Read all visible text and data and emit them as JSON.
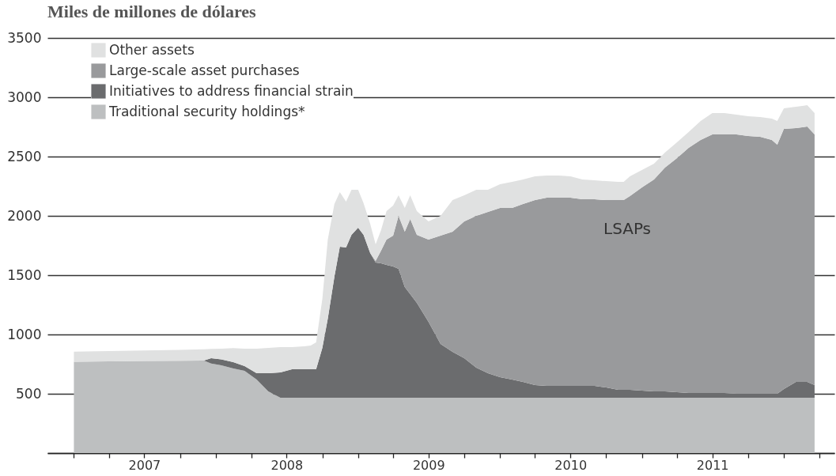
{
  "chart_data": {
    "type": "area",
    "stacked": true,
    "title": "Miles de millones de dólares",
    "x": [
      "2007-01-01",
      "2007-04-01",
      "2007-07-01",
      "2007-10-01",
      "2007-12-01",
      "2007-12-20",
      "2008-01-15",
      "2008-02-15",
      "2008-03-15",
      "2008-04-15",
      "2008-05-15",
      "2008-06-15",
      "2008-07-15",
      "2008-08-15",
      "2008-09-01",
      "2008-09-15",
      "2008-10-01",
      "2008-10-15",
      "2008-11-01",
      "2008-11-15",
      "2008-12-01",
      "2008-12-15",
      "2009-01-01",
      "2009-01-15",
      "2009-02-01",
      "2009-02-15",
      "2009-03-01",
      "2009-03-15",
      "2009-04-01",
      "2009-04-15",
      "2009-05-01",
      "2009-05-15",
      "2009-06-01",
      "2009-07-01",
      "2009-08-01",
      "2009-09-01",
      "2009-10-01",
      "2009-11-01",
      "2009-12-01",
      "2010-01-01",
      "2010-02-01",
      "2010-03-01",
      "2010-04-01",
      "2010-05-01",
      "2010-06-01",
      "2010-07-01",
      "2010-08-01",
      "2010-09-01",
      "2010-10-01",
      "2010-11-01",
      "2010-11-15",
      "2010-12-01",
      "2011-01-01",
      "2011-02-01",
      "2011-03-01",
      "2011-04-01",
      "2011-05-01",
      "2011-06-01",
      "2011-07-01",
      "2011-08-01",
      "2011-09-01",
      "2011-10-01",
      "2011-11-01",
      "2011-12-01",
      "2011-12-15",
      "2012-01-01",
      "2012-02-01",
      "2012-03-01",
      "2012-03-20"
    ],
    "series": [
      {
        "name": "Traditional security holdings*",
        "color": "#bdbfc0",
        "values": [
          770,
          773,
          777,
          778,
          780,
          755,
          740,
          713,
          693,
          620,
          520,
          467,
          467,
          467,
          467,
          467,
          467,
          467,
          467,
          467,
          467,
          467,
          467,
          467,
          467,
          467,
          467,
          467,
          467,
          467,
          467,
          467,
          467,
          467,
          467,
          467,
          467,
          467,
          467,
          467,
          467,
          467,
          467,
          467,
          467,
          467,
          467,
          467,
          467,
          467,
          467,
          467,
          467,
          467,
          467,
          467,
          467,
          467,
          467,
          467,
          467,
          467,
          467,
          467,
          467,
          467,
          467,
          467,
          467
        ]
      },
      {
        "name": "Initiatives to address financial strain",
        "color": "#6b6c6e",
        "values": [
          0,
          0,
          0,
          0,
          0,
          45,
          50,
          54,
          40,
          53,
          153,
          213,
          240,
          240,
          240,
          240,
          420,
          666,
          1020,
          1273,
          1266,
          1373,
          1433,
          1373,
          1220,
          1140,
          1133,
          1120,
          1106,
          1086,
          933,
          873,
          800,
          640,
          453,
          386,
          333,
          253,
          206,
          173,
          153,
          133,
          106,
          100,
          100,
          100,
          100,
          100,
          86,
          66,
          66,
          66,
          60,
          53,
          53,
          46,
          40,
          40,
          40,
          40,
          33,
          33,
          33,
          33,
          33,
          73,
          133,
          133,
          106
        ]
      },
      {
        "name": "Large-scale asset purchases",
        "color": "#999a9c",
        "values": [
          0,
          0,
          0,
          0,
          0,
          0,
          0,
          0,
          0,
          0,
          0,
          0,
          0,
          0,
          0,
          0,
          0,
          0,
          0,
          0,
          0,
          0,
          0,
          0,
          0,
          13,
          107,
          213,
          260,
          447,
          467,
          633,
          573,
          693,
          913,
          1014,
          1153,
          1280,
          1360,
          1427,
          1447,
          1500,
          1560,
          1586,
          1586,
          1586,
          1573,
          1573,
          1580,
          1600,
          1600,
          1634,
          1713,
          1787,
          1887,
          1974,
          2066,
          2133,
          2180,
          2180,
          2187,
          2173,
          2167,
          2140,
          2100,
          2193,
          2140,
          2153,
          2114
        ]
      },
      {
        "name": "Other assets",
        "color": "#e0e1e1",
        "values": [
          85,
          87,
          88,
          92,
          95,
          78,
          90,
          118,
          147,
          207,
          214,
          213,
          186,
          193,
          200,
          226,
          413,
          667,
          613,
          460,
          387,
          380,
          320,
          267,
          246,
          140,
          173,
          240,
          254,
          173,
          200,
          200,
          200,
          153,
          167,
          266,
          220,
          220,
          187,
          200,
          220,
          207,
          200,
          187,
          187,
          180,
          167,
          160,
          160,
          154,
          154,
          166,
          147,
          133,
          126,
          133,
          134,
          160,
          180,
          180,
          166,
          167,
          166,
          180,
          200,
          174,
          180,
          180,
          180
        ]
      }
    ],
    "xlim": [
      "2006-10-25",
      "2012-05-10"
    ],
    "xticks": [
      {
        "value": "2007-01-01",
        "label": null
      },
      {
        "value": "2007-04-01",
        "label": null
      },
      {
        "value": "2007-07-01",
        "label": "2007"
      },
      {
        "value": "2007-10-01",
        "label": null
      },
      {
        "value": "2008-01-01",
        "label": null
      },
      {
        "value": "2008-04-01",
        "label": null
      },
      {
        "value": "2008-07-01",
        "label": "2008"
      },
      {
        "value": "2008-10-01",
        "label": null
      },
      {
        "value": "2009-01-01",
        "label": null
      },
      {
        "value": "2009-04-01",
        "label": null
      },
      {
        "value": "2009-07-01",
        "label": "2009"
      },
      {
        "value": "2009-10-01",
        "label": null
      },
      {
        "value": "2010-01-01",
        "label": null
      },
      {
        "value": "2010-04-01",
        "label": null
      },
      {
        "value": "2010-07-01",
        "label": "2010"
      },
      {
        "value": "2010-10-01",
        "label": null
      },
      {
        "value": "2011-01-01",
        "label": null
      },
      {
        "value": "2011-04-01",
        "label": null
      },
      {
        "value": "2011-07-01",
        "label": "2011"
      },
      {
        "value": "2011-10-01",
        "label": null
      },
      {
        "value": "2012-01-01",
        "label": null
      },
      {
        "value": "2012-04-01",
        "label": null
      }
    ],
    "ylim": [
      0,
      3500
    ],
    "yticks": [
      {
        "value": 0,
        "label": null
      },
      500,
      1000,
      1500,
      2000,
      2500,
      3000,
      3500
    ],
    "grid": "y",
    "legend": "top left",
    "annotations": [
      "LSAPs"
    ]
  }
}
